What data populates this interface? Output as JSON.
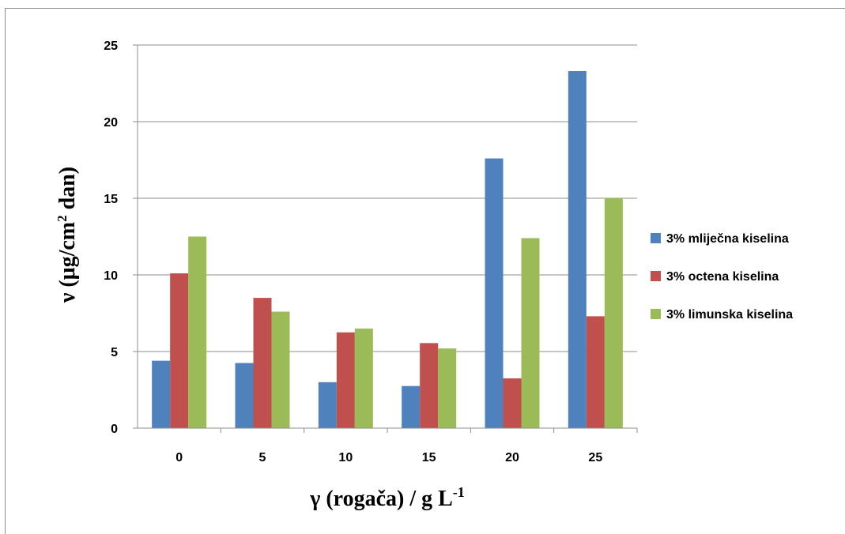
{
  "chart_data": {
    "type": "bar",
    "categories": [
      "0",
      "5",
      "10",
      "15",
      "20",
      "25"
    ],
    "series": [
      {
        "name": "3% mliječna kiselina",
        "color": "#4f81bd",
        "values": [
          4.4,
          4.25,
          3.0,
          2.75,
          17.6,
          23.3
        ]
      },
      {
        "name": "3% octena kiselina",
        "color": "#c0504d",
        "values": [
          10.1,
          8.5,
          6.25,
          5.55,
          3.25,
          7.3
        ]
      },
      {
        "name": "3% limunska kiselina",
        "color": "#9bbb59",
        "values": [
          12.5,
          7.6,
          6.5,
          5.2,
          12.4,
          15.0
        ]
      }
    ],
    "ylim": [
      0,
      25
    ],
    "yticks": [
      "0",
      "5",
      "10",
      "15",
      "20",
      "25"
    ],
    "ylabel": {
      "main": "ν (μg/cm",
      "sup": "2",
      "tail": " dan)"
    },
    "xlabel": {
      "main": "γ (rogača) / g L",
      "sup": "-1"
    },
    "grid": true,
    "legend_position": "right"
  }
}
